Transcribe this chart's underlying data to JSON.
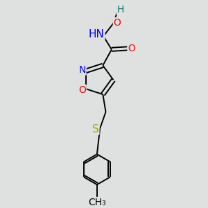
{
  "bg_color": "#dfe0e0",
  "bond_color": "#000000",
  "atom_colors": {
    "O": "#ff0000",
    "N": "#0000ff",
    "S": "#aaaa00",
    "C": "#000000",
    "H": "#007070"
  },
  "font_size": 10,
  "line_width": 1.4
}
